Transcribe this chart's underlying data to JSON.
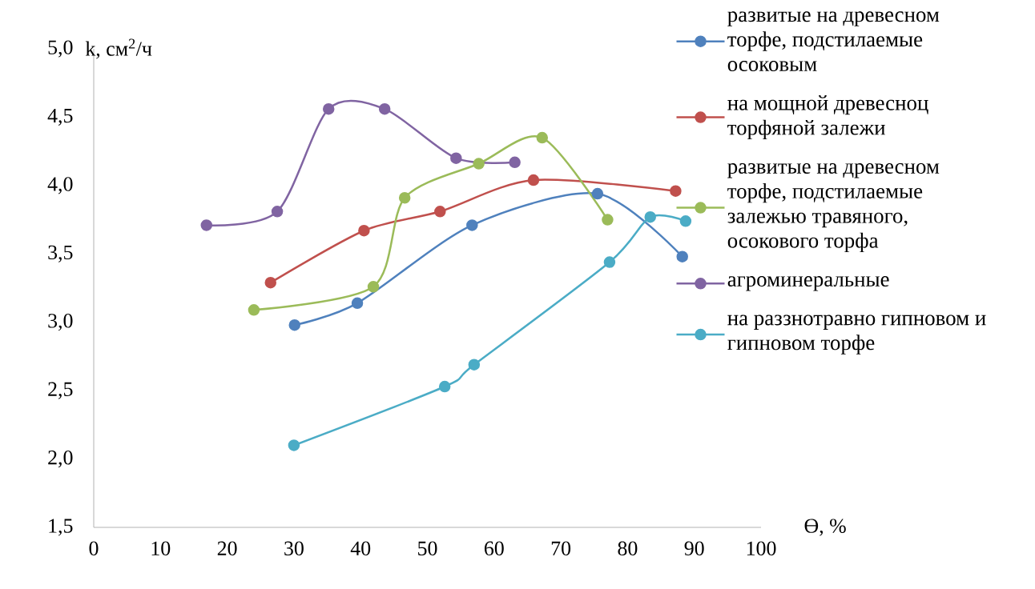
{
  "chart_data": {
    "type": "line",
    "xlabel": "Ө, %",
    "ylabel": "k, см$^{2}$/ч",
    "xlim": [
      0,
      100
    ],
    "ylim": [
      1.5,
      5.0
    ],
    "xticks": [
      0,
      10,
      20,
      30,
      40,
      50,
      60,
      70,
      80,
      90,
      100
    ],
    "yticks": [
      {
        "value": 1.5,
        "label": "1,5"
      },
      {
        "value": 2.0,
        "label": "2,0"
      },
      {
        "value": 2.5,
        "label": "2,5"
      },
      {
        "value": 3.0,
        "label": "3,0"
      },
      {
        "value": 3.5,
        "label": "3,5"
      },
      {
        "value": 4.0,
        "label": "4,0"
      },
      {
        "value": 4.5,
        "label": "4,5"
      },
      {
        "value": 5.0,
        "label": "5,0"
      }
    ],
    "grid": false,
    "legend": "right",
    "marker": "circle",
    "line_style": "solid",
    "series": [
      {
        "name": "развитые на древесном торфе, подстилаемые осоковым",
        "color": "#4f81bd",
        "x": [
          30.1,
          39.5,
          56.7,
          75.5,
          88.2
        ],
        "values": [
          2.98,
          3.14,
          3.71,
          3.94,
          3.48
        ]
      },
      {
        "name": "на мощной древесноц торфяной залежи",
        "color": "#c0504d",
        "x": [
          26.5,
          40.5,
          51.9,
          65.9,
          87.2
        ],
        "values": [
          3.29,
          3.67,
          3.81,
          4.04,
          3.96
        ]
      },
      {
        "name": "развитые на древесном торфе, подстилаемые залежью травяного, осокового торфа",
        "color": "#9bbb59",
        "x": [
          24.0,
          41.9,
          46.6,
          57.7,
          67.2,
          77.0
        ],
        "values": [
          3.09,
          3.26,
          3.91,
          4.16,
          4.35,
          3.75
        ]
      },
      {
        "name": "агроминеральные",
        "color": "#8064a2",
        "x": [
          16.9,
          27.5,
          35.2,
          43.6,
          54.3,
          63.1
        ],
        "values": [
          3.71,
          3.81,
          4.56,
          4.56,
          4.2,
          4.17
        ]
      },
      {
        "name": "на раззнотравно гипновом и гипновом торфе",
        "color": "#4bacc6",
        "x": [
          30.0,
          52.6,
          57.0,
          77.3,
          83.4,
          88.7
        ],
        "values": [
          2.1,
          2.53,
          2.69,
          3.44,
          3.77,
          3.74
        ]
      }
    ]
  }
}
